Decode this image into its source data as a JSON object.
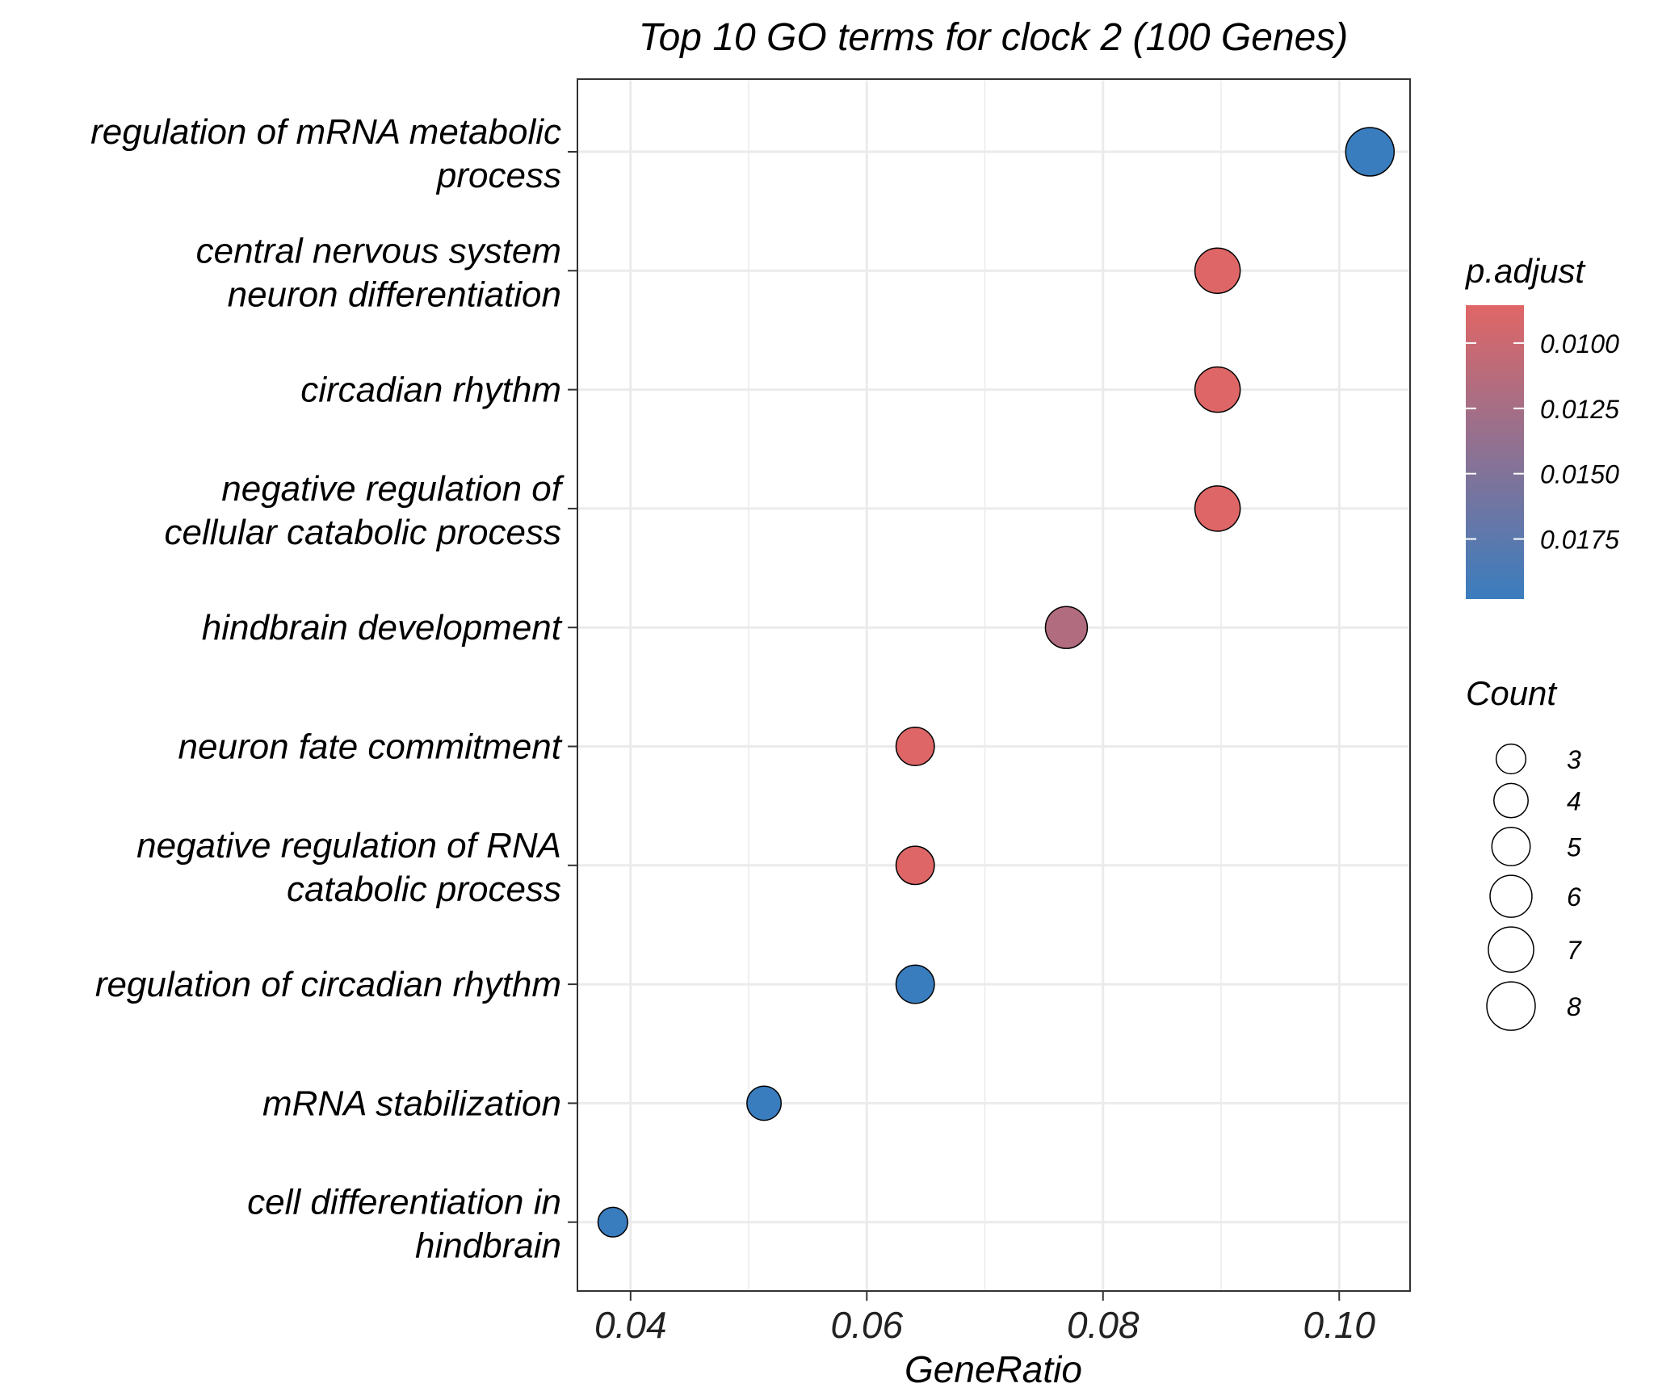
{
  "chart_data": {
    "type": "scatter",
    "title": "Top 10 GO terms for clock 2 (100 Genes)",
    "xlabel": "GeneRatio",
    "ylabel": "",
    "xlim": [
      0.0355,
      0.106
    ],
    "x_ticks": [
      "0.04",
      "0.06",
      "0.08",
      "0.10"
    ],
    "x_tick_values": [
      0.04,
      0.06,
      0.08,
      0.1
    ],
    "grid": true,
    "legend_placement": "right",
    "colors": {
      "low": "#e06666",
      "high": "#3a7dbf",
      "border": "#000000",
      "grid": "#ebebeb"
    },
    "color_legend": {
      "title": "p.adjust",
      "range": [
        0.00855,
        0.0198
      ],
      "ticks": [
        "0.0100",
        "0.0125",
        "0.0150",
        "0.0175"
      ],
      "tick_values": [
        0.01,
        0.0125,
        0.015,
        0.0175
      ]
    },
    "size_legend": {
      "title": "Count",
      "values": [
        3,
        4,
        5,
        6,
        7,
        8
      ],
      "labels": [
        "3",
        "4",
        "5",
        "6",
        "7",
        "8"
      ]
    },
    "terms": [
      {
        "line1": "regulation of mRNA metabolic",
        "line2": "process",
        "gene_ratio": 0.1026,
        "count": 8,
        "p_adjust": 0.0198
      },
      {
        "line1": "central nervous system",
        "line2": "neuron differentiation",
        "gene_ratio": 0.0897,
        "count": 7,
        "p_adjust": 0.0087
      },
      {
        "line1": "circadian rhythm",
        "line2": "",
        "gene_ratio": 0.0897,
        "count": 7,
        "p_adjust": 0.0087
      },
      {
        "line1": "negative regulation of",
        "line2": "cellular catabolic process",
        "gene_ratio": 0.0897,
        "count": 7,
        "p_adjust": 0.0087
      },
      {
        "line1": "hindbrain development",
        "line2": "",
        "gene_ratio": 0.0769,
        "count": 6,
        "p_adjust": 0.0117
      },
      {
        "line1": "neuron fate commitment",
        "line2": "",
        "gene_ratio": 0.0641,
        "count": 5,
        "p_adjust": 0.0087
      },
      {
        "line1": "negative regulation of RNA",
        "line2": "catabolic process",
        "gene_ratio": 0.0641,
        "count": 5,
        "p_adjust": 0.0087
      },
      {
        "line1": "regulation of circadian rhythm",
        "line2": "",
        "gene_ratio": 0.0641,
        "count": 5,
        "p_adjust": 0.0198
      },
      {
        "line1": "mRNA stabilization",
        "line2": "",
        "gene_ratio": 0.0513,
        "count": 4,
        "p_adjust": 0.0198
      },
      {
        "line1": "cell differentiation in",
        "line2": "hindbrain",
        "gene_ratio": 0.0385,
        "count": 3,
        "p_adjust": 0.0198
      }
    ]
  }
}
